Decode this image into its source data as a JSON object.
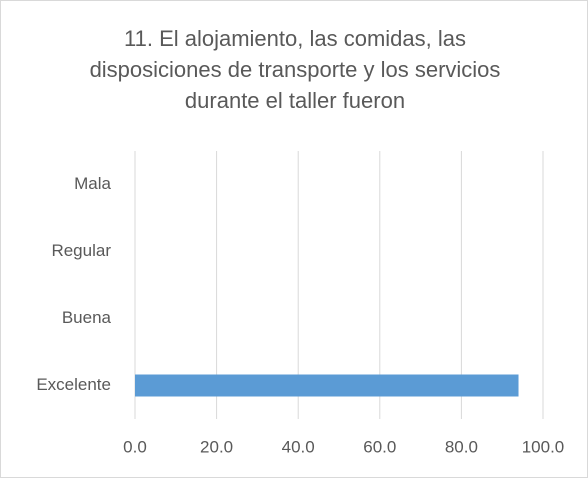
{
  "chart_data": {
    "type": "bar",
    "orientation": "horizontal",
    "title": "11. El alojamiento, las comidas, las disposiciones de transporte y los servicios durante el taller fueron",
    "categories": [
      "Mala",
      "Regular",
      "Buena",
      "Excelente"
    ],
    "values": [
      0,
      0,
      0,
      94
    ],
    "color": "#5b9bd5",
    "xlim": [
      0,
      100
    ],
    "xticks": [
      {
        "value": 0,
        "label": "0.0"
      },
      {
        "value": 20,
        "label": "20.0"
      },
      {
        "value": 40,
        "label": "40.0"
      },
      {
        "value": 60,
        "label": "60.0"
      },
      {
        "value": 80,
        "label": "80.0"
      },
      {
        "value": 100,
        "label": "100.0"
      }
    ],
    "grid": true
  }
}
